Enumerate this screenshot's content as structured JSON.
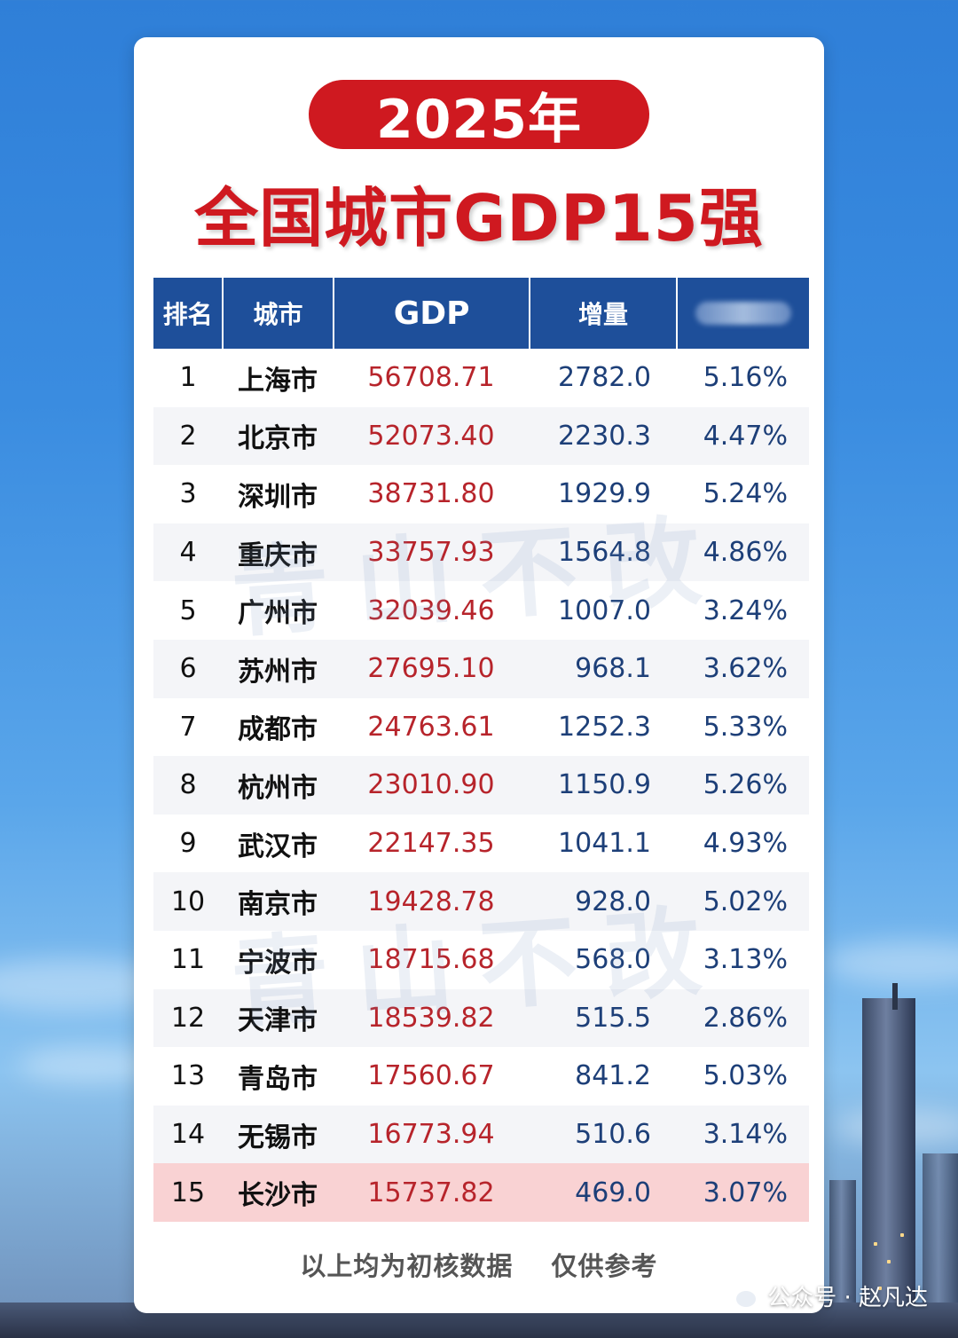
{
  "header": {
    "year_badge": "2025年",
    "title": "全国城市GDP15强"
  },
  "table": {
    "columns": [
      "排名",
      "城市",
      "GDP",
      "增量",
      ""
    ],
    "rows": [
      {
        "rank": "1",
        "city": "上海市",
        "gdp": "56708.71",
        "increase": "2782.0",
        "rate": "5.16%"
      },
      {
        "rank": "2",
        "city": "北京市",
        "gdp": "52073.40",
        "increase": "2230.3",
        "rate": "4.47%"
      },
      {
        "rank": "3",
        "city": "深圳市",
        "gdp": "38731.80",
        "increase": "1929.9",
        "rate": "5.24%"
      },
      {
        "rank": "4",
        "city": "重庆市",
        "gdp": "33757.93",
        "increase": "1564.8",
        "rate": "4.86%"
      },
      {
        "rank": "5",
        "city": "广州市",
        "gdp": "32039.46",
        "increase": "1007.0",
        "rate": "3.24%"
      },
      {
        "rank": "6",
        "city": "苏州市",
        "gdp": "27695.10",
        "increase": "968.1",
        "rate": "3.62%"
      },
      {
        "rank": "7",
        "city": "成都市",
        "gdp": "24763.61",
        "increase": "1252.3",
        "rate": "5.33%"
      },
      {
        "rank": "8",
        "city": "杭州市",
        "gdp": "23010.90",
        "increase": "1150.9",
        "rate": "5.26%"
      },
      {
        "rank": "9",
        "city": "武汉市",
        "gdp": "22147.35",
        "increase": "1041.1",
        "rate": "4.93%"
      },
      {
        "rank": "10",
        "city": "南京市",
        "gdp": "19428.78",
        "increase": "928.0",
        "rate": "5.02%"
      },
      {
        "rank": "11",
        "city": "宁波市",
        "gdp": "18715.68",
        "increase": "568.0",
        "rate": "3.13%"
      },
      {
        "rank": "12",
        "city": "天津市",
        "gdp": "18539.82",
        "increase": "515.5",
        "rate": "2.86%"
      },
      {
        "rank": "13",
        "city": "青岛市",
        "gdp": "17560.67",
        "increase": "841.2",
        "rate": "5.03%"
      },
      {
        "rank": "14",
        "city": "无锡市",
        "gdp": "16773.94",
        "increase": "510.6",
        "rate": "3.14%"
      },
      {
        "rank": "15",
        "city": "长沙市",
        "gdp": "15737.82",
        "increase": "469.0",
        "rate": "3.07%"
      }
    ],
    "highlight_row_color": "#f9d2d3"
  },
  "watermark": "青山不改",
  "footer": {
    "note_left": "以上均为初核数据",
    "note_right": "仅供参考",
    "credit": "公众号 · 赵凡达",
    "credit_icon": "wechat-icon"
  },
  "colors": {
    "accent_red": "#cf1920",
    "header_blue": "#1e4f9a",
    "gdp_text": "#b7242b",
    "value_text": "#1d3f78"
  },
  "chart_data": {
    "type": "table",
    "title": "全国城市GDP15强",
    "columns": [
      "排名",
      "城市",
      "GDP",
      "增量",
      ""
    ],
    "rows": [
      [
        1,
        "上海市",
        56708.71,
        2782.0,
        "5.16%"
      ],
      [
        2,
        "北京市",
        52073.4,
        2230.3,
        "4.47%"
      ],
      [
        3,
        "深圳市",
        38731.8,
        1929.9,
        "5.24%"
      ],
      [
        4,
        "重庆市",
        33757.93,
        1564.8,
        "4.86%"
      ],
      [
        5,
        "广州市",
        32039.46,
        1007.0,
        "3.24%"
      ],
      [
        6,
        "苏州市",
        27695.1,
        968.1,
        "3.62%"
      ],
      [
        7,
        "成都市",
        24763.61,
        1252.3,
        "5.33%"
      ],
      [
        8,
        "杭州市",
        23010.9,
        1150.9,
        "5.26%"
      ],
      [
        9,
        "武汉市",
        22147.35,
        1041.1,
        "4.93%"
      ],
      [
        10,
        "南京市",
        19428.78,
        928.0,
        "5.02%"
      ],
      [
        11,
        "宁波市",
        18715.68,
        568.0,
        "3.13%"
      ],
      [
        12,
        "天津市",
        18539.82,
        515.5,
        "2.86%"
      ],
      [
        13,
        "青岛市",
        17560.67,
        841.2,
        "5.03%"
      ],
      [
        14,
        "无锡市",
        16773.94,
        510.6,
        "3.14%"
      ],
      [
        15,
        "长沙市",
        15737.82,
        469.0,
        "3.07%"
      ]
    ]
  }
}
